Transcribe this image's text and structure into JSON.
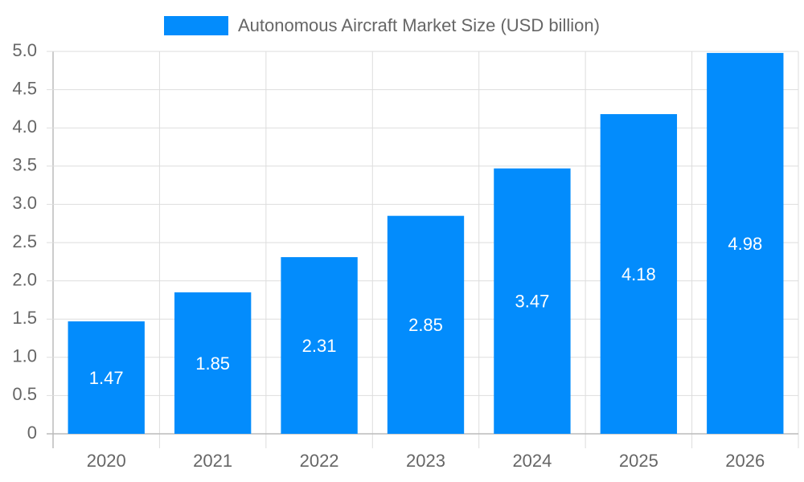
{
  "chart_data": {
    "type": "bar",
    "categories": [
      "2020",
      "2021",
      "2022",
      "2023",
      "2024",
      "2025",
      "2026"
    ],
    "series": [
      {
        "name": "Autonomous Aircraft Market Size (USD billion)",
        "color": "#038cfc",
        "values": [
          1.47,
          1.85,
          2.31,
          2.85,
          3.47,
          4.18,
          4.98
        ]
      }
    ],
    "ylim": [
      0,
      5
    ],
    "yticks": [
      0,
      0.5,
      {
        "value": 1,
        "label": "1.0"
      },
      1.5,
      {
        "value": 2,
        "label": "2.0"
      },
      2.5,
      {
        "value": 3,
        "label": "3.0"
      },
      3.5,
      {
        "value": 4,
        "label": "4.0"
      },
      4.5,
      {
        "value": 5,
        "label": "5.0"
      }
    ],
    "grid": true,
    "legend": "top"
  }
}
